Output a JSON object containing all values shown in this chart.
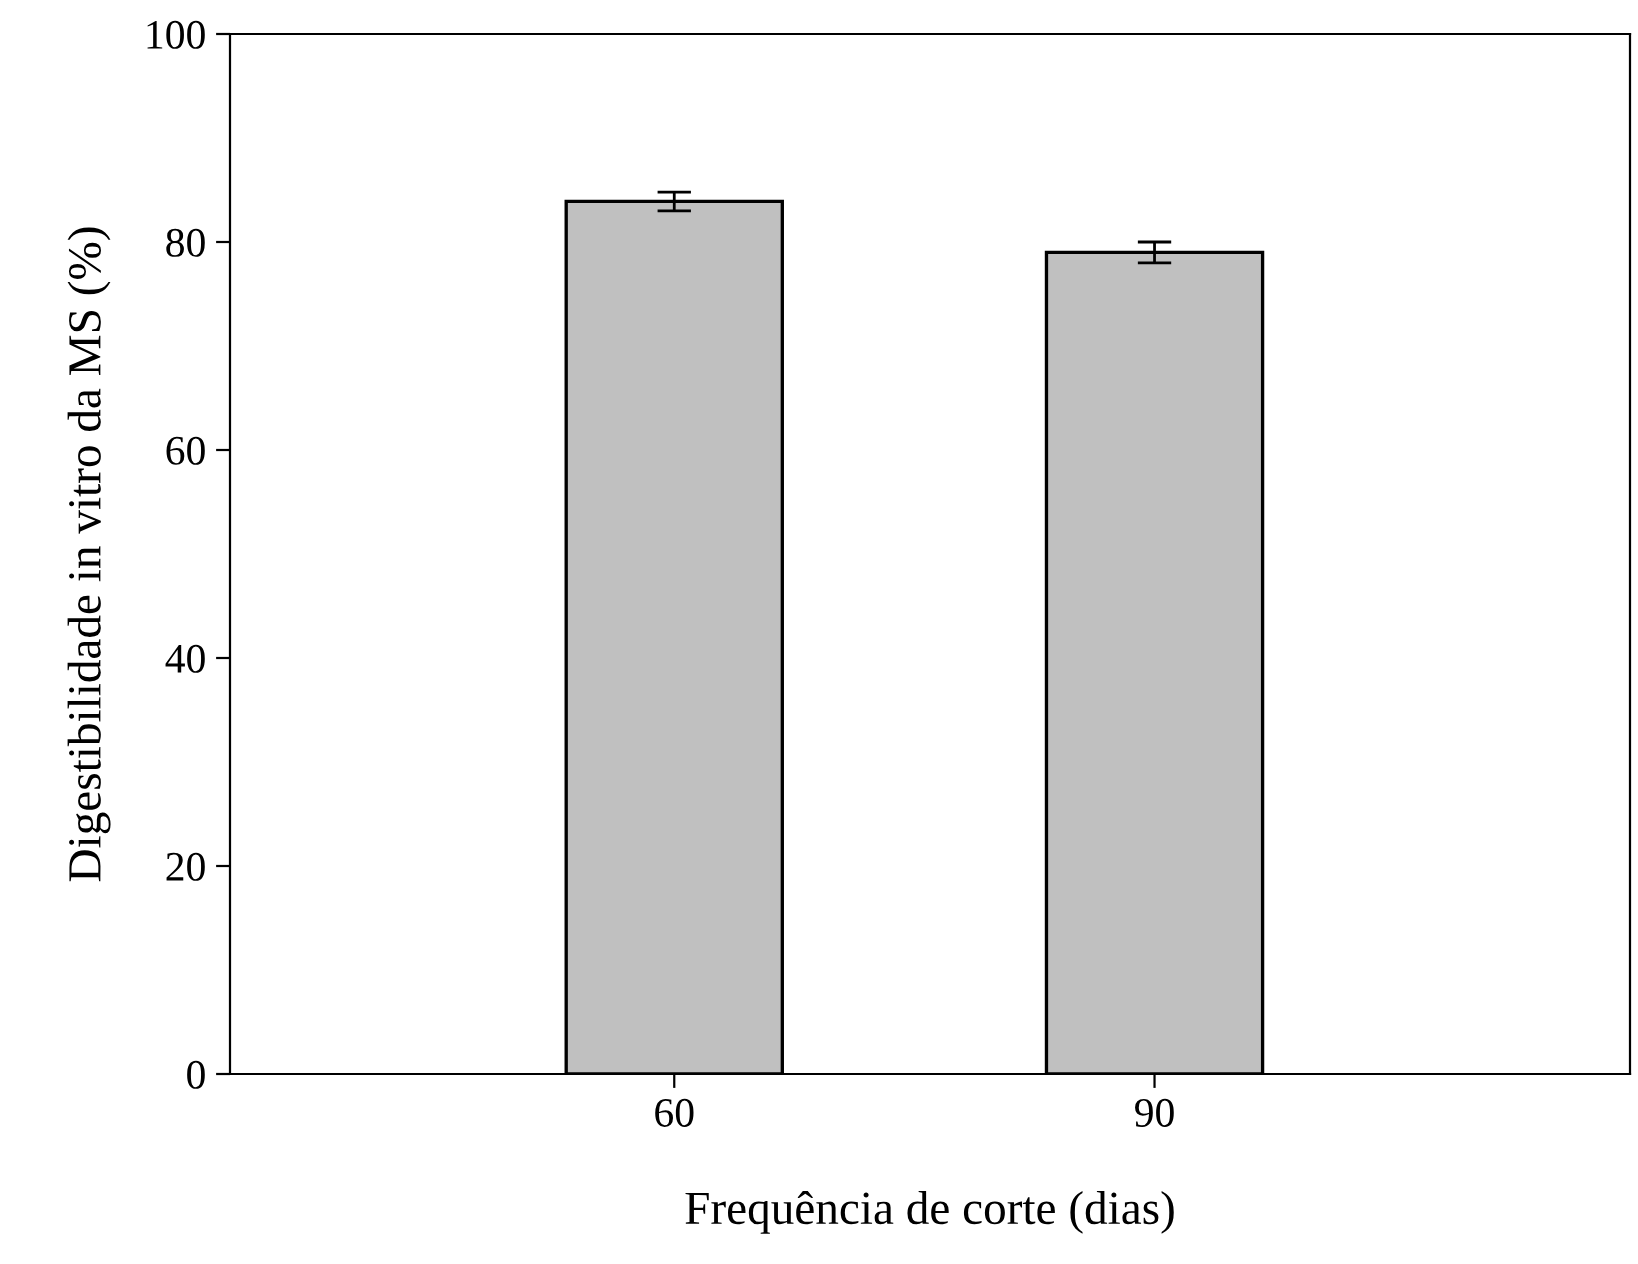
{
  "chart_data": {
    "type": "bar",
    "xlabel": "Frequência de corte (dias)",
    "ylabel": "Digestibilidade in vitro da MS (%)",
    "categories": [
      "60",
      "90"
    ],
    "values": [
      83.9,
      79.0
    ],
    "errors": [
      0.9,
      1.0
    ],
    "color": "#c0c0c0",
    "ylim": [
      0,
      100
    ],
    "yticks": [
      0,
      20,
      40,
      60,
      80,
      100
    ],
    "grid": false,
    "legend": false
  }
}
